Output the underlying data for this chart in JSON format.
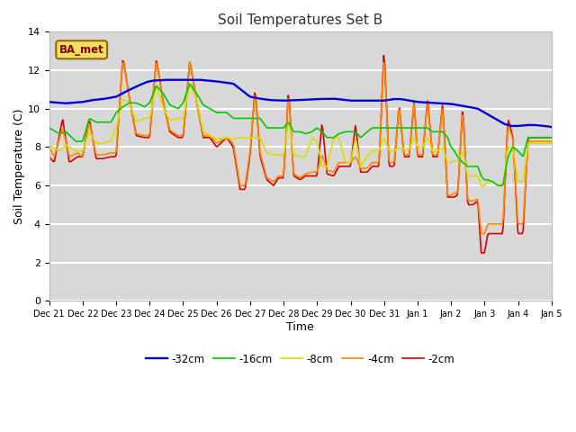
{
  "title": "Soil Temperatures Set B",
  "xlabel": "Time",
  "ylabel": "Soil Temperature (C)",
  "ylim": [
    0,
    14
  ],
  "background_color": "#ffffff",
  "plot_bg_color": "#d8d8d8",
  "legend_label": "BA_met",
  "series_labels": [
    "-2cm",
    "-4cm",
    "-8cm",
    "-16cm",
    "-32cm"
  ],
  "series_colors": [
    "#dd0000",
    "#ff8800",
    "#dddd00",
    "#00cc00",
    "#0000dd"
  ],
  "tick_labels": [
    "Dec 21",
    "Dec 22",
    "Dec 23",
    "Dec 24",
    "Dec 25",
    "Dec 26",
    "Dec 27",
    "Dec 28",
    "Dec 29",
    "Dec 30",
    "Dec 31",
    "Jan 1",
    "Jan 2",
    "Jan 3",
    "Jan 4",
    "Jan 5"
  ],
  "yticks": [
    0,
    2,
    4,
    6,
    8,
    10,
    12,
    14
  ],
  "figsize": [
    6.4,
    4.8
  ],
  "dpi": 100
}
